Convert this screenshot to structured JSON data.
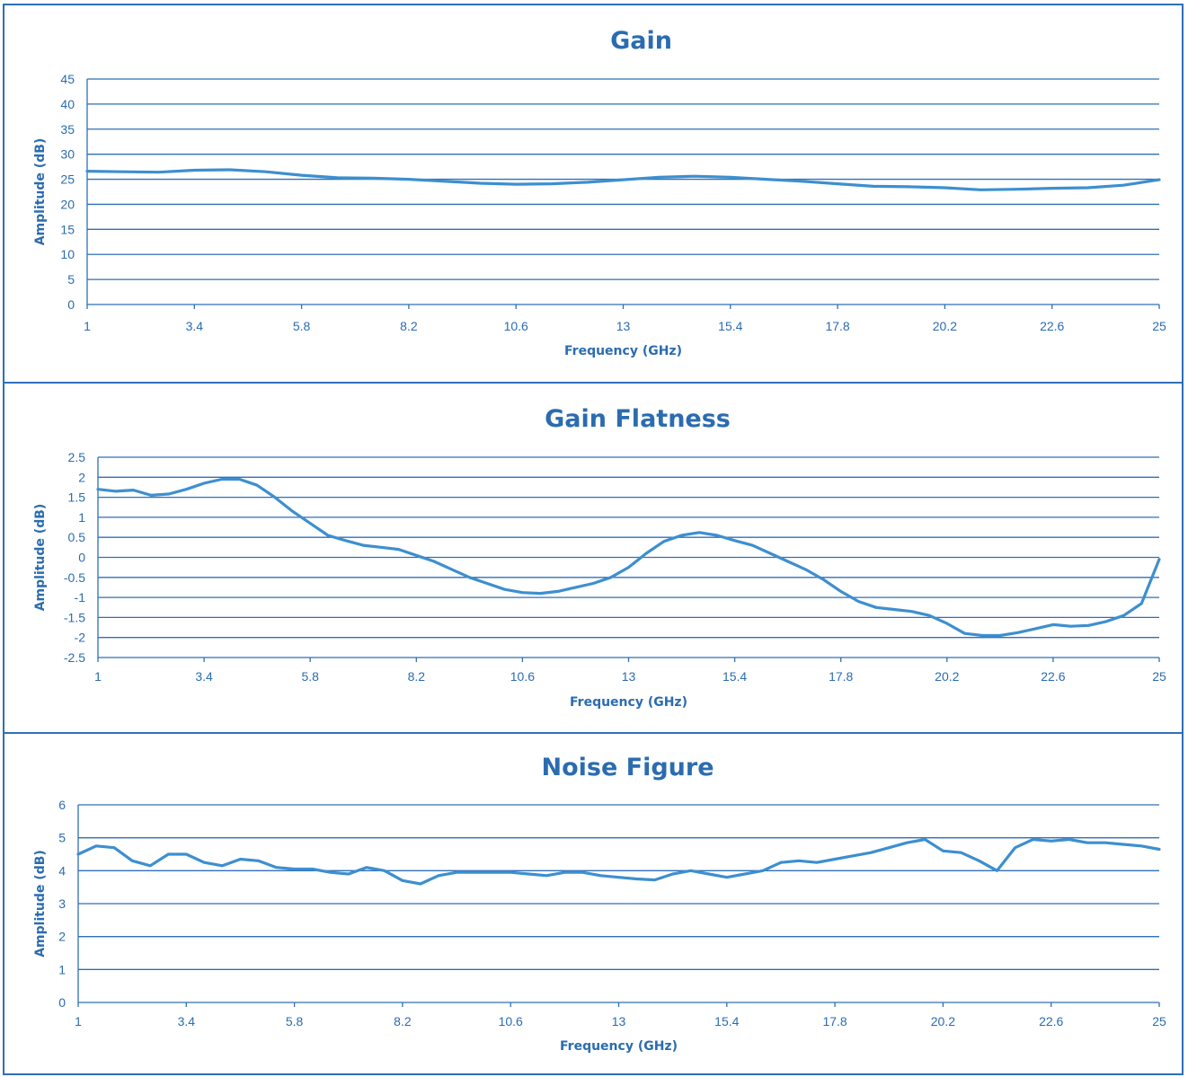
{
  "style": {
    "line_color": "#3d8fcf",
    "axis_color": "#2e6fb7",
    "text_color": "#2b6cb0"
  },
  "chart_data": [
    {
      "type": "line",
      "title": "Gain",
      "xlabel": "Frequency (GHz)",
      "ylabel": "Amplitude (dB)",
      "xlim": [
        1,
        25
      ],
      "ylim": [
        0,
        45
      ],
      "xticks": [
        "1",
        "3.4",
        "5.8",
        "8.2",
        "10.6",
        "13",
        "15.4",
        "17.8",
        "20.2",
        "22.6",
        "25"
      ],
      "yticks": [
        "0",
        "5",
        "10",
        "15",
        "20",
        "25",
        "30",
        "35",
        "40",
        "45"
      ],
      "grid": true,
      "x": [
        1,
        1.8,
        2.6,
        3.4,
        4.2,
        5.0,
        5.8,
        6.6,
        7.4,
        8.2,
        9.0,
        9.8,
        10.6,
        11.4,
        12.2,
        13.0,
        13.8,
        14.6,
        15.4,
        16.2,
        17.0,
        17.8,
        18.6,
        19.4,
        20.2,
        21.0,
        21.8,
        22.6,
        23.4,
        24.2,
        25
      ],
      "y": [
        26.6,
        26.5,
        26.4,
        26.8,
        26.9,
        26.5,
        25.8,
        25.3,
        25.2,
        25.0,
        24.6,
        24.2,
        24.0,
        24.1,
        24.4,
        24.9,
        25.4,
        25.6,
        25.4,
        25.0,
        24.6,
        24.1,
        23.6,
        23.5,
        23.3,
        22.9,
        23.0,
        23.2,
        23.3,
        23.8,
        24.9
      ]
    },
    {
      "type": "line",
      "title": "Gain Flatness",
      "xlabel": "Frequency (GHz)",
      "ylabel": "Amplitude (dB)",
      "xlim": [
        1,
        25
      ],
      "ylim": [
        -2.5,
        2.5
      ],
      "xticks": [
        "1",
        "3.4",
        "5.8",
        "8.2",
        "10.6",
        "13",
        "15.4",
        "17.8",
        "20.2",
        "22.6",
        "25"
      ],
      "yticks": [
        "-2.5",
        "-2",
        "-1.5",
        "-1",
        "-0.5",
        "0",
        "0.5",
        "1",
        "1.5",
        "2",
        "2.5"
      ],
      "grid": true,
      "x": [
        1,
        1.4,
        1.8,
        2.2,
        2.6,
        3.0,
        3.4,
        3.8,
        4.2,
        4.6,
        5.0,
        5.4,
        5.8,
        6.2,
        6.6,
        7.0,
        7.4,
        7.8,
        8.2,
        8.6,
        9.0,
        9.4,
        9.8,
        10.2,
        10.6,
        11.0,
        11.4,
        11.8,
        12.2,
        12.6,
        13.0,
        13.4,
        13.8,
        14.2,
        14.6,
        15.0,
        15.4,
        15.8,
        16.2,
        16.6,
        17.0,
        17.4,
        17.8,
        18.2,
        18.6,
        19.0,
        19.4,
        19.8,
        20.2,
        20.6,
        21.0,
        21.4,
        21.8,
        22.2,
        22.6,
        23.0,
        23.4,
        23.8,
        24.2,
        24.6,
        25
      ],
      "y": [
        1.7,
        1.65,
        1.68,
        1.55,
        1.58,
        1.7,
        1.85,
        1.95,
        1.95,
        1.8,
        1.5,
        1.15,
        0.85,
        0.55,
        0.42,
        0.3,
        0.25,
        0.2,
        0.05,
        -0.1,
        -0.3,
        -0.5,
        -0.65,
        -0.8,
        -0.88,
        -0.9,
        -0.85,
        -0.75,
        -0.65,
        -0.5,
        -0.25,
        0.1,
        0.4,
        0.55,
        0.62,
        0.55,
        0.42,
        0.3,
        0.1,
        -0.1,
        -0.3,
        -0.55,
        -0.85,
        -1.1,
        -1.25,
        -1.3,
        -1.35,
        -1.45,
        -1.65,
        -1.9,
        -1.95,
        -1.95,
        -1.88,
        -1.78,
        -1.68,
        -1.72,
        -1.7,
        -1.6,
        -1.45,
        -1.15,
        -0.05
      ]
    },
    {
      "type": "line",
      "title": "Noise Figure",
      "xlabel": "Frequency (GHz)",
      "ylabel": "Amplitude (dB)",
      "xlim": [
        1,
        25
      ],
      "ylim": [
        0,
        6
      ],
      "xticks": [
        "1",
        "3.4",
        "5.8",
        "8.2",
        "10.6",
        "13",
        "15.4",
        "17.8",
        "20.2",
        "22.6",
        "25"
      ],
      "yticks": [
        "0",
        "1",
        "2",
        "3",
        "4",
        "5",
        "6"
      ],
      "grid": true,
      "x": [
        1,
        1.4,
        1.8,
        2.2,
        2.6,
        3.0,
        3.4,
        3.8,
        4.2,
        4.6,
        5.0,
        5.4,
        5.8,
        6.2,
        6.6,
        7.0,
        7.4,
        7.8,
        8.2,
        8.6,
        9.0,
        9.4,
        9.8,
        10.2,
        10.6,
        11.0,
        11.4,
        11.8,
        12.2,
        12.6,
        13.0,
        13.4,
        13.8,
        14.2,
        14.6,
        15.0,
        15.4,
        15.8,
        16.2,
        16.6,
        17.0,
        17.4,
        17.8,
        18.2,
        18.6,
        19.0,
        19.4,
        19.8,
        20.2,
        20.6,
        21.0,
        21.4,
        21.8,
        22.2,
        22.6,
        23.0,
        23.4,
        23.8,
        24.2,
        24.6,
        25
      ],
      "y": [
        4.5,
        4.75,
        4.7,
        4.3,
        4.15,
        4.5,
        4.5,
        4.25,
        4.15,
        4.35,
        4.3,
        4.1,
        4.05,
        4.05,
        3.95,
        3.9,
        4.1,
        4.0,
        3.7,
        3.6,
        3.85,
        3.95,
        3.95,
        3.95,
        3.95,
        3.9,
        3.85,
        3.95,
        3.95,
        3.85,
        3.8,
        3.75,
        3.72,
        3.9,
        4.0,
        3.9,
        3.8,
        3.9,
        4.0,
        4.25,
        4.3,
        4.25,
        4.35,
        4.45,
        4.55,
        4.7,
        4.85,
        4.95,
        4.6,
        4.55,
        4.3,
        4.0,
        4.7,
        4.95,
        4.9,
        4.95,
        4.85,
        4.85,
        4.8,
        4.75,
        4.65
      ]
    }
  ]
}
